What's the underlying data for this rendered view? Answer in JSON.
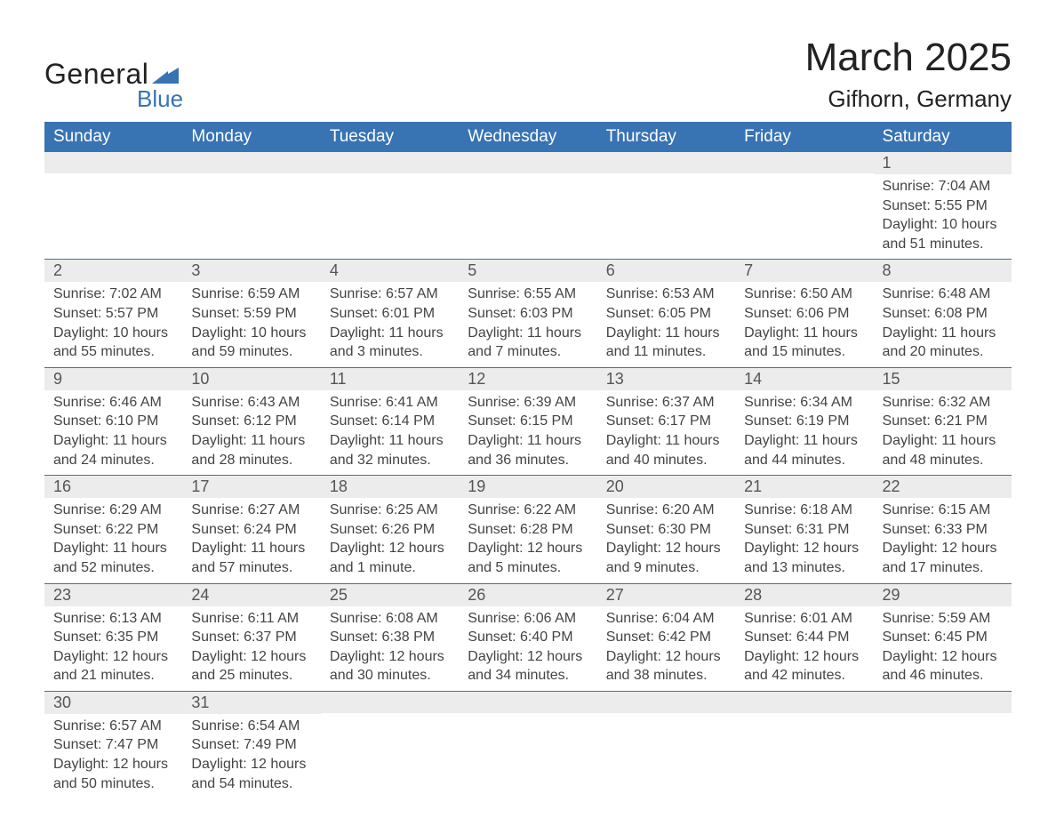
{
  "logo": {
    "word1": "General",
    "word2": "Blue"
  },
  "title": "March 2025",
  "location": "Gifhorn, Germany",
  "colors": {
    "header_bg": "#3873b3",
    "header_fg": "#ffffff",
    "daynum_bg": "#ececec",
    "row_border": "#3873b3",
    "text": "#333333"
  },
  "weekdays": [
    "Sunday",
    "Monday",
    "Tuesday",
    "Wednesday",
    "Thursday",
    "Friday",
    "Saturday"
  ],
  "weeks": [
    [
      null,
      null,
      null,
      null,
      null,
      null,
      {
        "n": "1",
        "sunrise": "7:04 AM",
        "sunset": "5:55 PM",
        "daylight": "10 hours and 51 minutes."
      }
    ],
    [
      {
        "n": "2",
        "sunrise": "7:02 AM",
        "sunset": "5:57 PM",
        "daylight": "10 hours and 55 minutes."
      },
      {
        "n": "3",
        "sunrise": "6:59 AM",
        "sunset": "5:59 PM",
        "daylight": "10 hours and 59 minutes."
      },
      {
        "n": "4",
        "sunrise": "6:57 AM",
        "sunset": "6:01 PM",
        "daylight": "11 hours and 3 minutes."
      },
      {
        "n": "5",
        "sunrise": "6:55 AM",
        "sunset": "6:03 PM",
        "daylight": "11 hours and 7 minutes."
      },
      {
        "n": "6",
        "sunrise": "6:53 AM",
        "sunset": "6:05 PM",
        "daylight": "11 hours and 11 minutes."
      },
      {
        "n": "7",
        "sunrise": "6:50 AM",
        "sunset": "6:06 PM",
        "daylight": "11 hours and 15 minutes."
      },
      {
        "n": "8",
        "sunrise": "6:48 AM",
        "sunset": "6:08 PM",
        "daylight": "11 hours and 20 minutes."
      }
    ],
    [
      {
        "n": "9",
        "sunrise": "6:46 AM",
        "sunset": "6:10 PM",
        "daylight": "11 hours and 24 minutes."
      },
      {
        "n": "10",
        "sunrise": "6:43 AM",
        "sunset": "6:12 PM",
        "daylight": "11 hours and 28 minutes."
      },
      {
        "n": "11",
        "sunrise": "6:41 AM",
        "sunset": "6:14 PM",
        "daylight": "11 hours and 32 minutes."
      },
      {
        "n": "12",
        "sunrise": "6:39 AM",
        "sunset": "6:15 PM",
        "daylight": "11 hours and 36 minutes."
      },
      {
        "n": "13",
        "sunrise": "6:37 AM",
        "sunset": "6:17 PM",
        "daylight": "11 hours and 40 minutes."
      },
      {
        "n": "14",
        "sunrise": "6:34 AM",
        "sunset": "6:19 PM",
        "daylight": "11 hours and 44 minutes."
      },
      {
        "n": "15",
        "sunrise": "6:32 AM",
        "sunset": "6:21 PM",
        "daylight": "11 hours and 48 minutes."
      }
    ],
    [
      {
        "n": "16",
        "sunrise": "6:29 AM",
        "sunset": "6:22 PM",
        "daylight": "11 hours and 52 minutes."
      },
      {
        "n": "17",
        "sunrise": "6:27 AM",
        "sunset": "6:24 PM",
        "daylight": "11 hours and 57 minutes."
      },
      {
        "n": "18",
        "sunrise": "6:25 AM",
        "sunset": "6:26 PM",
        "daylight": "12 hours and 1 minute."
      },
      {
        "n": "19",
        "sunrise": "6:22 AM",
        "sunset": "6:28 PM",
        "daylight": "12 hours and 5 minutes."
      },
      {
        "n": "20",
        "sunrise": "6:20 AM",
        "sunset": "6:30 PM",
        "daylight": "12 hours and 9 minutes."
      },
      {
        "n": "21",
        "sunrise": "6:18 AM",
        "sunset": "6:31 PM",
        "daylight": "12 hours and 13 minutes."
      },
      {
        "n": "22",
        "sunrise": "6:15 AM",
        "sunset": "6:33 PM",
        "daylight": "12 hours and 17 minutes."
      }
    ],
    [
      {
        "n": "23",
        "sunrise": "6:13 AM",
        "sunset": "6:35 PM",
        "daylight": "12 hours and 21 minutes."
      },
      {
        "n": "24",
        "sunrise": "6:11 AM",
        "sunset": "6:37 PM",
        "daylight": "12 hours and 25 minutes."
      },
      {
        "n": "25",
        "sunrise": "6:08 AM",
        "sunset": "6:38 PM",
        "daylight": "12 hours and 30 minutes."
      },
      {
        "n": "26",
        "sunrise": "6:06 AM",
        "sunset": "6:40 PM",
        "daylight": "12 hours and 34 minutes."
      },
      {
        "n": "27",
        "sunrise": "6:04 AM",
        "sunset": "6:42 PM",
        "daylight": "12 hours and 38 minutes."
      },
      {
        "n": "28",
        "sunrise": "6:01 AM",
        "sunset": "6:44 PM",
        "daylight": "12 hours and 42 minutes."
      },
      {
        "n": "29",
        "sunrise": "5:59 AM",
        "sunset": "6:45 PM",
        "daylight": "12 hours and 46 minutes."
      }
    ],
    [
      {
        "n": "30",
        "sunrise": "6:57 AM",
        "sunset": "7:47 PM",
        "daylight": "12 hours and 50 minutes."
      },
      {
        "n": "31",
        "sunrise": "6:54 AM",
        "sunset": "7:49 PM",
        "daylight": "12 hours and 54 minutes."
      },
      null,
      null,
      null,
      null,
      null
    ]
  ],
  "labels": {
    "sunrise": "Sunrise: ",
    "sunset": "Sunset: ",
    "daylight": "Daylight: "
  }
}
